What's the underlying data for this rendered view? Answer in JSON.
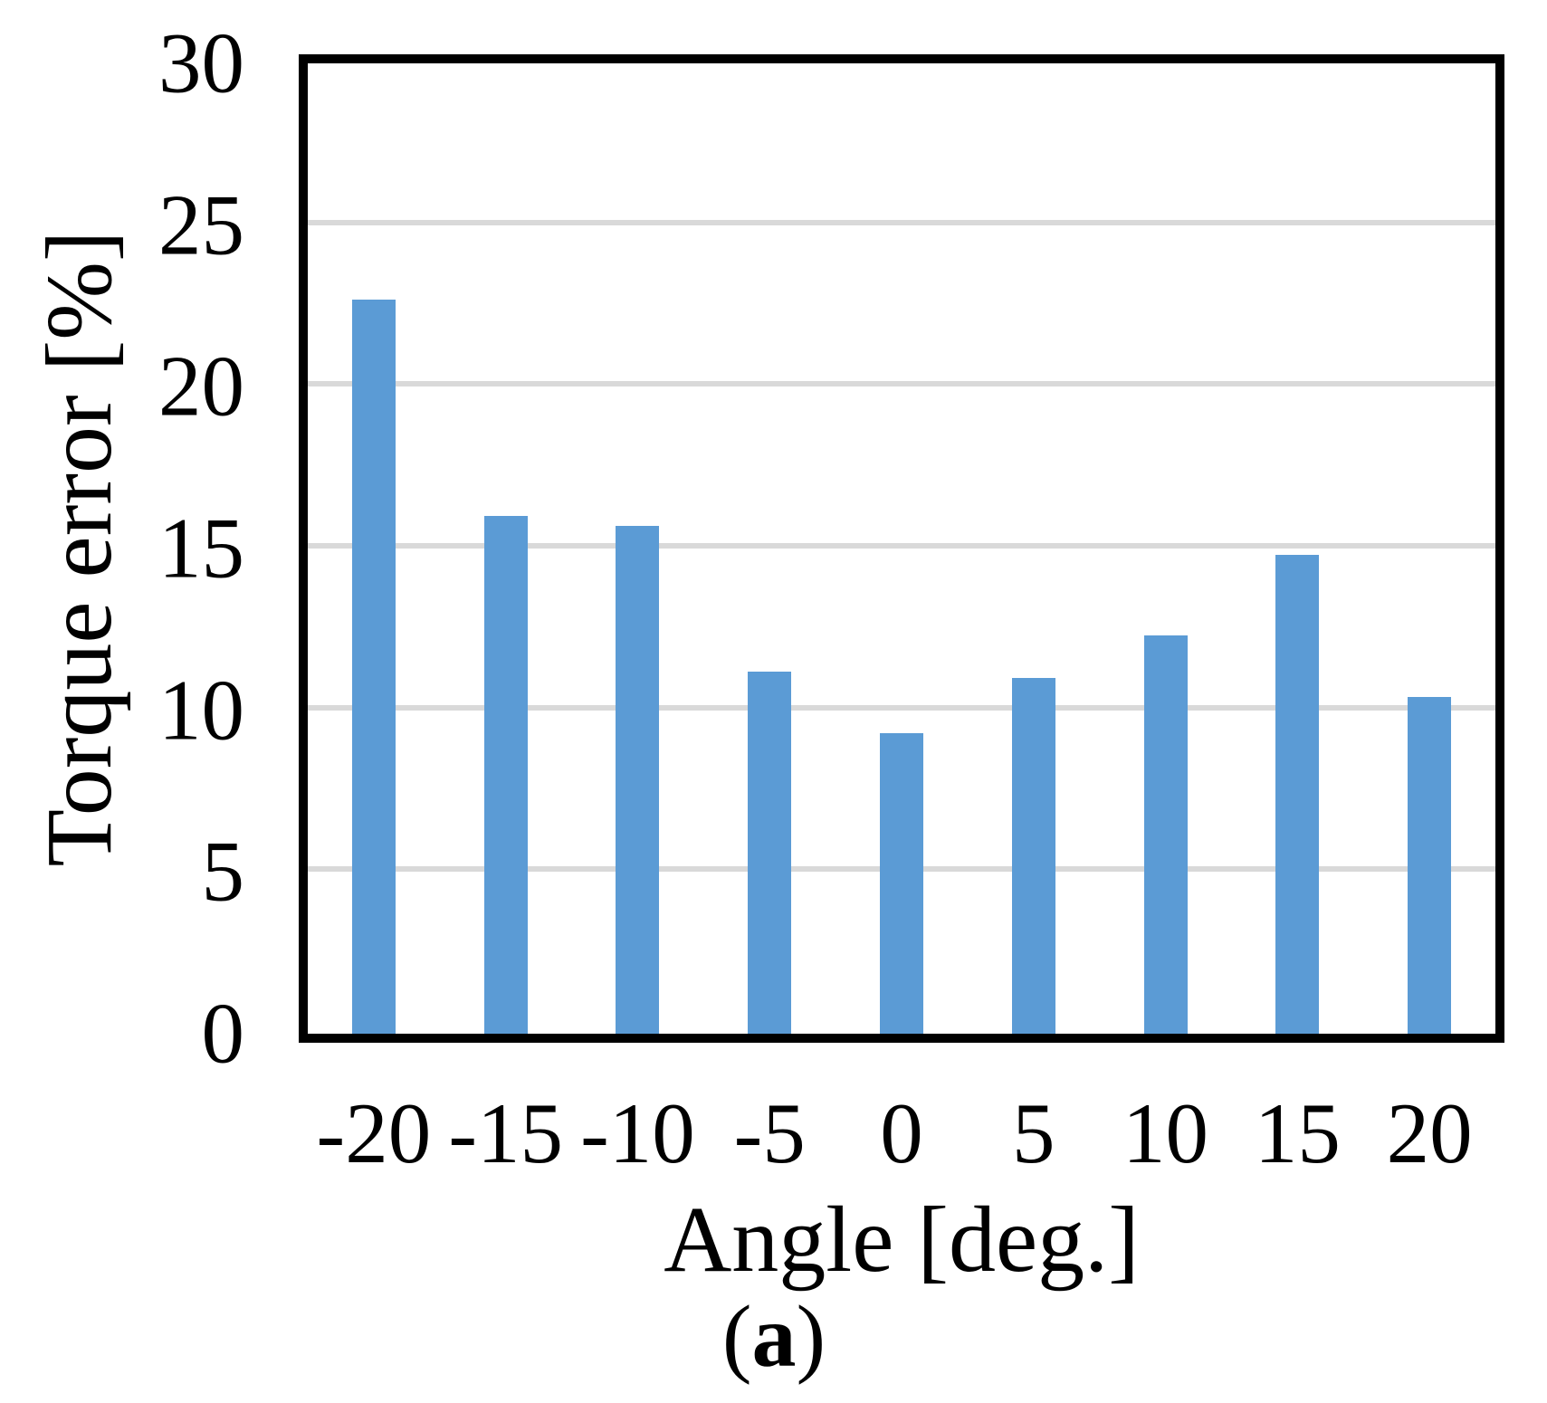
{
  "figure": {
    "caption": {
      "open": "(",
      "letter": "a",
      "close": ")"
    }
  },
  "chart_data": {
    "type": "bar",
    "title": "",
    "categories": [
      "-20",
      "-15",
      "-10",
      "-5",
      "0",
      "5",
      "10",
      "15",
      "20"
    ],
    "values": [
      22.7,
      16.0,
      15.7,
      11.2,
      9.3,
      11.0,
      12.3,
      14.8,
      10.4
    ],
    "xlabel": "Angle [deg.]",
    "ylabel": "Torque error [%]",
    "ylim": [
      0,
      30
    ],
    "yticks": [
      0,
      5,
      10,
      15,
      20,
      25,
      30
    ],
    "grid": true,
    "gridline_values": [
      5,
      10,
      15,
      20,
      25
    ],
    "legend_position": "none",
    "bar_color": "#5B9BD5",
    "gridline_color": "#D9D9D9",
    "axis_color": "#000000",
    "background_color": "#FFFFFF"
  }
}
